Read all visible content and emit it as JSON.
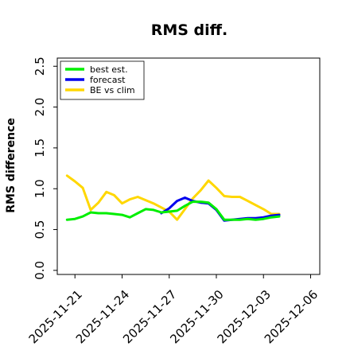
{
  "chart_data": {
    "type": "line",
    "title": "RMS diff.",
    "ylabel": "RMS difference",
    "xlabel": "",
    "ylim": [
      -0.05,
      2.6
    ],
    "yticks": [
      "0.0",
      "0.5",
      "1.0",
      "1.5",
      "2.0",
      "2.5"
    ],
    "xlim": [
      "2025-11-19T21:00",
      "2025-12-06T14:00"
    ],
    "xticks": [
      {
        "label": "2025-11-21",
        "color": "#000000"
      },
      {
        "label": "2025-11-24",
        "color": "#000000"
      },
      {
        "label": "2025-11-27",
        "color": "#228B22"
      },
      {
        "label": "2025-11-30",
        "color": "#000000"
      },
      {
        "label": "2025-12-03",
        "color": "#000000"
      },
      {
        "label": "2025-12-06",
        "color": "#000000"
      }
    ],
    "grid": false,
    "legend": {
      "placement": "top-left",
      "entries": [
        {
          "name": "best est.",
          "color": "#00ee00"
        },
        {
          "name": "forecast",
          "color": "#0000ee"
        },
        {
          "name": "BE vs clim",
          "color": "#ffd700"
        }
      ]
    },
    "series": [
      {
        "name": "best est.",
        "color": "#00ee00",
        "points": [
          [
            "2025-11-20T12:00",
            0.62
          ],
          [
            "2025-11-21T00:00",
            0.63
          ],
          [
            "2025-11-21T12:00",
            0.66
          ],
          [
            "2025-11-22T00:00",
            0.71
          ],
          [
            "2025-11-22T12:00",
            0.7
          ],
          [
            "2025-11-23T00:00",
            0.7
          ],
          [
            "2025-11-23T12:00",
            0.69
          ],
          [
            "2025-11-24T00:00",
            0.68
          ],
          [
            "2025-11-24T12:00",
            0.65
          ],
          [
            "2025-11-25T00:00",
            0.7
          ],
          [
            "2025-11-25T12:00",
            0.75
          ],
          [
            "2025-11-26T00:00",
            0.74
          ],
          [
            "2025-11-26T12:00",
            0.71
          ],
          [
            "2025-11-27T00:00",
            0.72
          ],
          [
            "2025-11-27T12:00",
            0.73
          ],
          [
            "2025-11-28T00:00",
            0.79
          ],
          [
            "2025-11-28T12:00",
            0.84
          ],
          [
            "2025-11-29T00:00",
            0.84
          ],
          [
            "2025-11-29T12:00",
            0.83
          ],
          [
            "2025-11-30T00:00",
            0.75
          ],
          [
            "2025-11-30T12:00",
            0.62
          ],
          [
            "2025-12-01T00:00",
            0.62
          ],
          [
            "2025-12-01T12:00",
            0.62
          ],
          [
            "2025-12-02T00:00",
            0.63
          ],
          [
            "2025-12-02T12:00",
            0.62
          ],
          [
            "2025-12-03T00:00",
            0.63
          ],
          [
            "2025-12-03T12:00",
            0.65
          ],
          [
            "2025-12-04T00:00",
            0.66
          ]
        ]
      },
      {
        "name": "forecast",
        "color": "#0000ee",
        "points": [
          [
            "2025-11-26T12:00",
            0.7
          ],
          [
            "2025-11-27T00:00",
            0.76
          ],
          [
            "2025-11-27T12:00",
            0.85
          ],
          [
            "2025-11-28T00:00",
            0.89
          ],
          [
            "2025-11-28T12:00",
            0.85
          ],
          [
            "2025-11-29T00:00",
            0.83
          ],
          [
            "2025-11-29T12:00",
            0.82
          ],
          [
            "2025-11-30T00:00",
            0.74
          ],
          [
            "2025-11-30T12:00",
            0.61
          ],
          [
            "2025-12-01T00:00",
            0.62
          ],
          [
            "2025-12-01T12:00",
            0.63
          ],
          [
            "2025-12-02T00:00",
            0.64
          ],
          [
            "2025-12-02T12:00",
            0.64
          ],
          [
            "2025-12-03T00:00",
            0.65
          ],
          [
            "2025-12-03T12:00",
            0.67
          ],
          [
            "2025-12-04T00:00",
            0.68
          ]
        ]
      },
      {
        "name": "BE vs clim",
        "color": "#ffd700",
        "points": [
          [
            "2025-11-20T12:00",
            1.16
          ],
          [
            "2025-11-21T00:00",
            1.09
          ],
          [
            "2025-11-21T12:00",
            1.01
          ],
          [
            "2025-11-22T00:00",
            0.74
          ],
          [
            "2025-11-22T12:00",
            0.83
          ],
          [
            "2025-11-23T00:00",
            0.96
          ],
          [
            "2025-11-23T12:00",
            0.92
          ],
          [
            "2025-11-24T00:00",
            0.82
          ],
          [
            "2025-11-24T12:00",
            0.87
          ],
          [
            "2025-11-25T00:00",
            0.9
          ],
          [
            "2025-11-25T12:00",
            0.86
          ],
          [
            "2025-11-26T00:00",
            0.82
          ],
          [
            "2025-11-26T12:00",
            0.77
          ],
          [
            "2025-11-27T00:00",
            0.72
          ],
          [
            "2025-11-27T12:00",
            0.62
          ],
          [
            "2025-11-28T00:00",
            0.75
          ],
          [
            "2025-11-28T12:00",
            0.88
          ],
          [
            "2025-11-29T00:00",
            0.98
          ],
          [
            "2025-11-29T12:00",
            1.1
          ],
          [
            "2025-11-30T00:00",
            1.01
          ],
          [
            "2025-11-30T12:00",
            0.91
          ],
          [
            "2025-12-01T00:00",
            0.9
          ],
          [
            "2025-12-01T12:00",
            0.9
          ],
          [
            "2025-12-02T00:00",
            0.85
          ],
          [
            "2025-12-02T12:00",
            0.8
          ],
          [
            "2025-12-03T00:00",
            0.75
          ],
          [
            "2025-12-03T12:00",
            0.69
          ],
          [
            "2025-12-04T00:00",
            0.69
          ]
        ]
      }
    ]
  }
}
